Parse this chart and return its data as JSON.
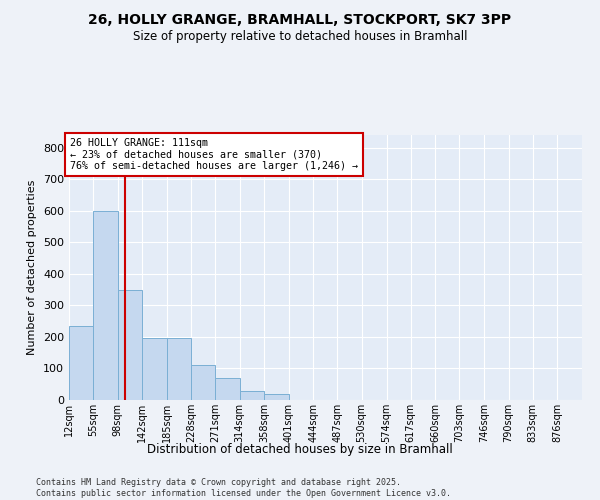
{
  "title_line1": "26, HOLLY GRANGE, BRAMHALL, STOCKPORT, SK7 3PP",
  "title_line2": "Size of property relative to detached houses in Bramhall",
  "xlabel": "Distribution of detached houses by size in Bramhall",
  "ylabel": "Number of detached properties",
  "bar_color": "#c5d8ef",
  "bar_edge_color": "#7aafd4",
  "marker_line_color": "#cc0000",
  "marker_value": 111,
  "annotation_text": "26 HOLLY GRANGE: 111sqm\n← 23% of detached houses are smaller (370)\n76% of semi-detached houses are larger (1,246) →",
  "annotation_box_color": "#ffffff",
  "annotation_box_edge": "#cc0000",
  "categories": [
    "12sqm",
    "55sqm",
    "98sqm",
    "142sqm",
    "185sqm",
    "228sqm",
    "271sqm",
    "314sqm",
    "358sqm",
    "401sqm",
    "444sqm",
    "487sqm",
    "530sqm",
    "574sqm",
    "617sqm",
    "660sqm",
    "703sqm",
    "746sqm",
    "790sqm",
    "833sqm",
    "876sqm"
  ],
  "bin_edges": [
    12,
    55,
    98,
    142,
    185,
    228,
    271,
    314,
    358,
    401,
    444,
    487,
    530,
    574,
    617,
    660,
    703,
    746,
    790,
    833,
    876,
    920
  ],
  "values": [
    235,
    600,
    350,
    195,
    195,
    110,
    70,
    30,
    20,
    0,
    0,
    0,
    0,
    0,
    0,
    0,
    0,
    0,
    0,
    0,
    0
  ],
  "ylim": [
    0,
    840
  ],
  "yticks": [
    0,
    100,
    200,
    300,
    400,
    500,
    600,
    700,
    800
  ],
  "footer_text": "Contains HM Land Registry data © Crown copyright and database right 2025.\nContains public sector information licensed under the Open Government Licence v3.0.",
  "background_color": "#eef2f8",
  "plot_background": "#e4ecf7"
}
